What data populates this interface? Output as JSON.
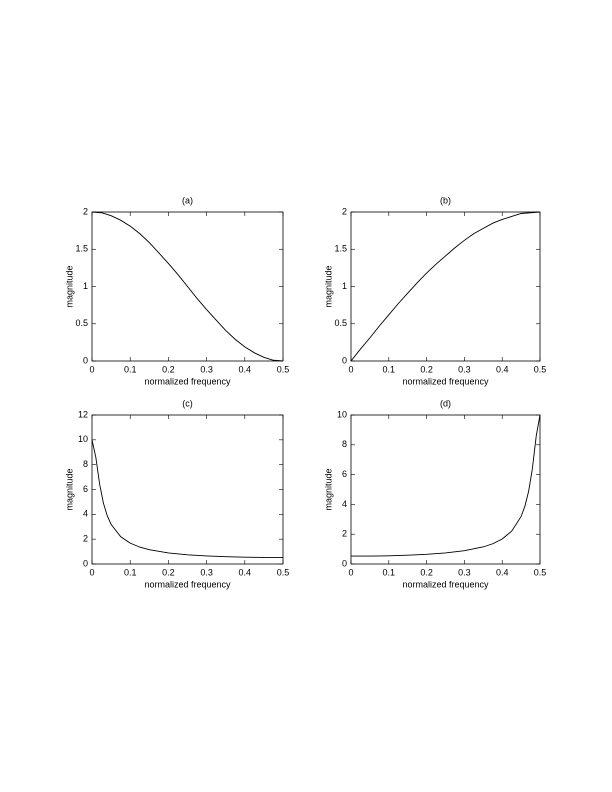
{
  "chart_data": [
    {
      "type": "line",
      "title": "(a)",
      "x_label": "normalized frequency",
      "y_label": "magnitude",
      "color": "#000000",
      "x": [
        0,
        0.025,
        0.05,
        0.075,
        0.1,
        0.125,
        0.15,
        0.175,
        0.2,
        0.225,
        0.25,
        0.275,
        0.3,
        0.325,
        0.35,
        0.375,
        0.4,
        0.425,
        0.45,
        0.475,
        0.5
      ],
      "values": [
        2,
        1.99,
        1.95,
        1.89,
        1.81,
        1.71,
        1.59,
        1.45,
        1.31,
        1.16,
        1,
        0.84,
        0.69,
        0.55,
        0.41,
        0.29,
        0.19,
        0.11,
        0.05,
        0.01,
        0
      ],
      "xlim": [
        0,
        0.5
      ],
      "xticks": [
        0,
        0.1,
        0.2,
        0.3,
        0.4,
        0.5
      ],
      "ylim": [
        0,
        2
      ],
      "yticks": [
        0,
        0.5,
        1,
        1.5,
        2
      ]
    },
    {
      "type": "line",
      "title": "(b)",
      "x_label": "normalized frequency",
      "y_label": "magnitude",
      "color": "#000000",
      "x": [
        0,
        0.025,
        0.05,
        0.075,
        0.1,
        0.125,
        0.15,
        0.175,
        0.2,
        0.225,
        0.25,
        0.275,
        0.3,
        0.325,
        0.35,
        0.375,
        0.4,
        0.425,
        0.45,
        0.475,
        0.5
      ],
      "values": [
        0,
        0.16,
        0.31,
        0.47,
        0.62,
        0.77,
        0.91,
        1.05,
        1.18,
        1.3,
        1.41,
        1.52,
        1.62,
        1.71,
        1.78,
        1.85,
        1.9,
        1.94,
        1.98,
        1.99,
        2
      ],
      "xlim": [
        0,
        0.5
      ],
      "xticks": [
        0,
        0.1,
        0.2,
        0.3,
        0.4,
        0.5
      ],
      "ylim": [
        0,
        2
      ],
      "yticks": [
        0,
        0.5,
        1,
        1.5,
        2
      ]
    },
    {
      "type": "line",
      "title": "(c)",
      "x_label": "normalized frequency",
      "y_label": "magnitude",
      "color": "#000000",
      "x": [
        0,
        0.01,
        0.02,
        0.03,
        0.04,
        0.05,
        0.075,
        0.1,
        0.125,
        0.15,
        0.2,
        0.25,
        0.3,
        0.35,
        0.4,
        0.45,
        0.5
      ],
      "values": [
        10,
        8.59,
        6.43,
        4.89,
        3.88,
        3.19,
        2.2,
        1.68,
        1.36,
        1.15,
        0.89,
        0.74,
        0.65,
        0.59,
        0.55,
        0.53,
        0.53
      ],
      "xlim": [
        0,
        0.5
      ],
      "xticks": [
        0,
        0.1,
        0.2,
        0.3,
        0.4,
        0.5
      ],
      "ylim": [
        0,
        12
      ],
      "yticks": [
        0,
        2,
        4,
        6,
        8,
        10,
        12
      ]
    },
    {
      "type": "line",
      "title": "(d)",
      "x_label": "normalized frequency",
      "y_label": "magnitude",
      "color": "#000000",
      "x": [
        0,
        0.05,
        0.1,
        0.15,
        0.2,
        0.25,
        0.3,
        0.35,
        0.375,
        0.4,
        0.425,
        0.45,
        0.46,
        0.47,
        0.48,
        0.49,
        0.5
      ],
      "values": [
        0.53,
        0.53,
        0.55,
        0.59,
        0.65,
        0.74,
        0.89,
        1.15,
        1.36,
        1.68,
        2.2,
        3.19,
        3.88,
        4.89,
        6.43,
        8.59,
        10
      ],
      "xlim": [
        0,
        0.5
      ],
      "xticks": [
        0,
        0.1,
        0.2,
        0.3,
        0.4,
        0.5
      ],
      "ylim": [
        0,
        10
      ],
      "yticks": [
        0,
        2,
        4,
        6,
        8,
        10
      ]
    }
  ]
}
